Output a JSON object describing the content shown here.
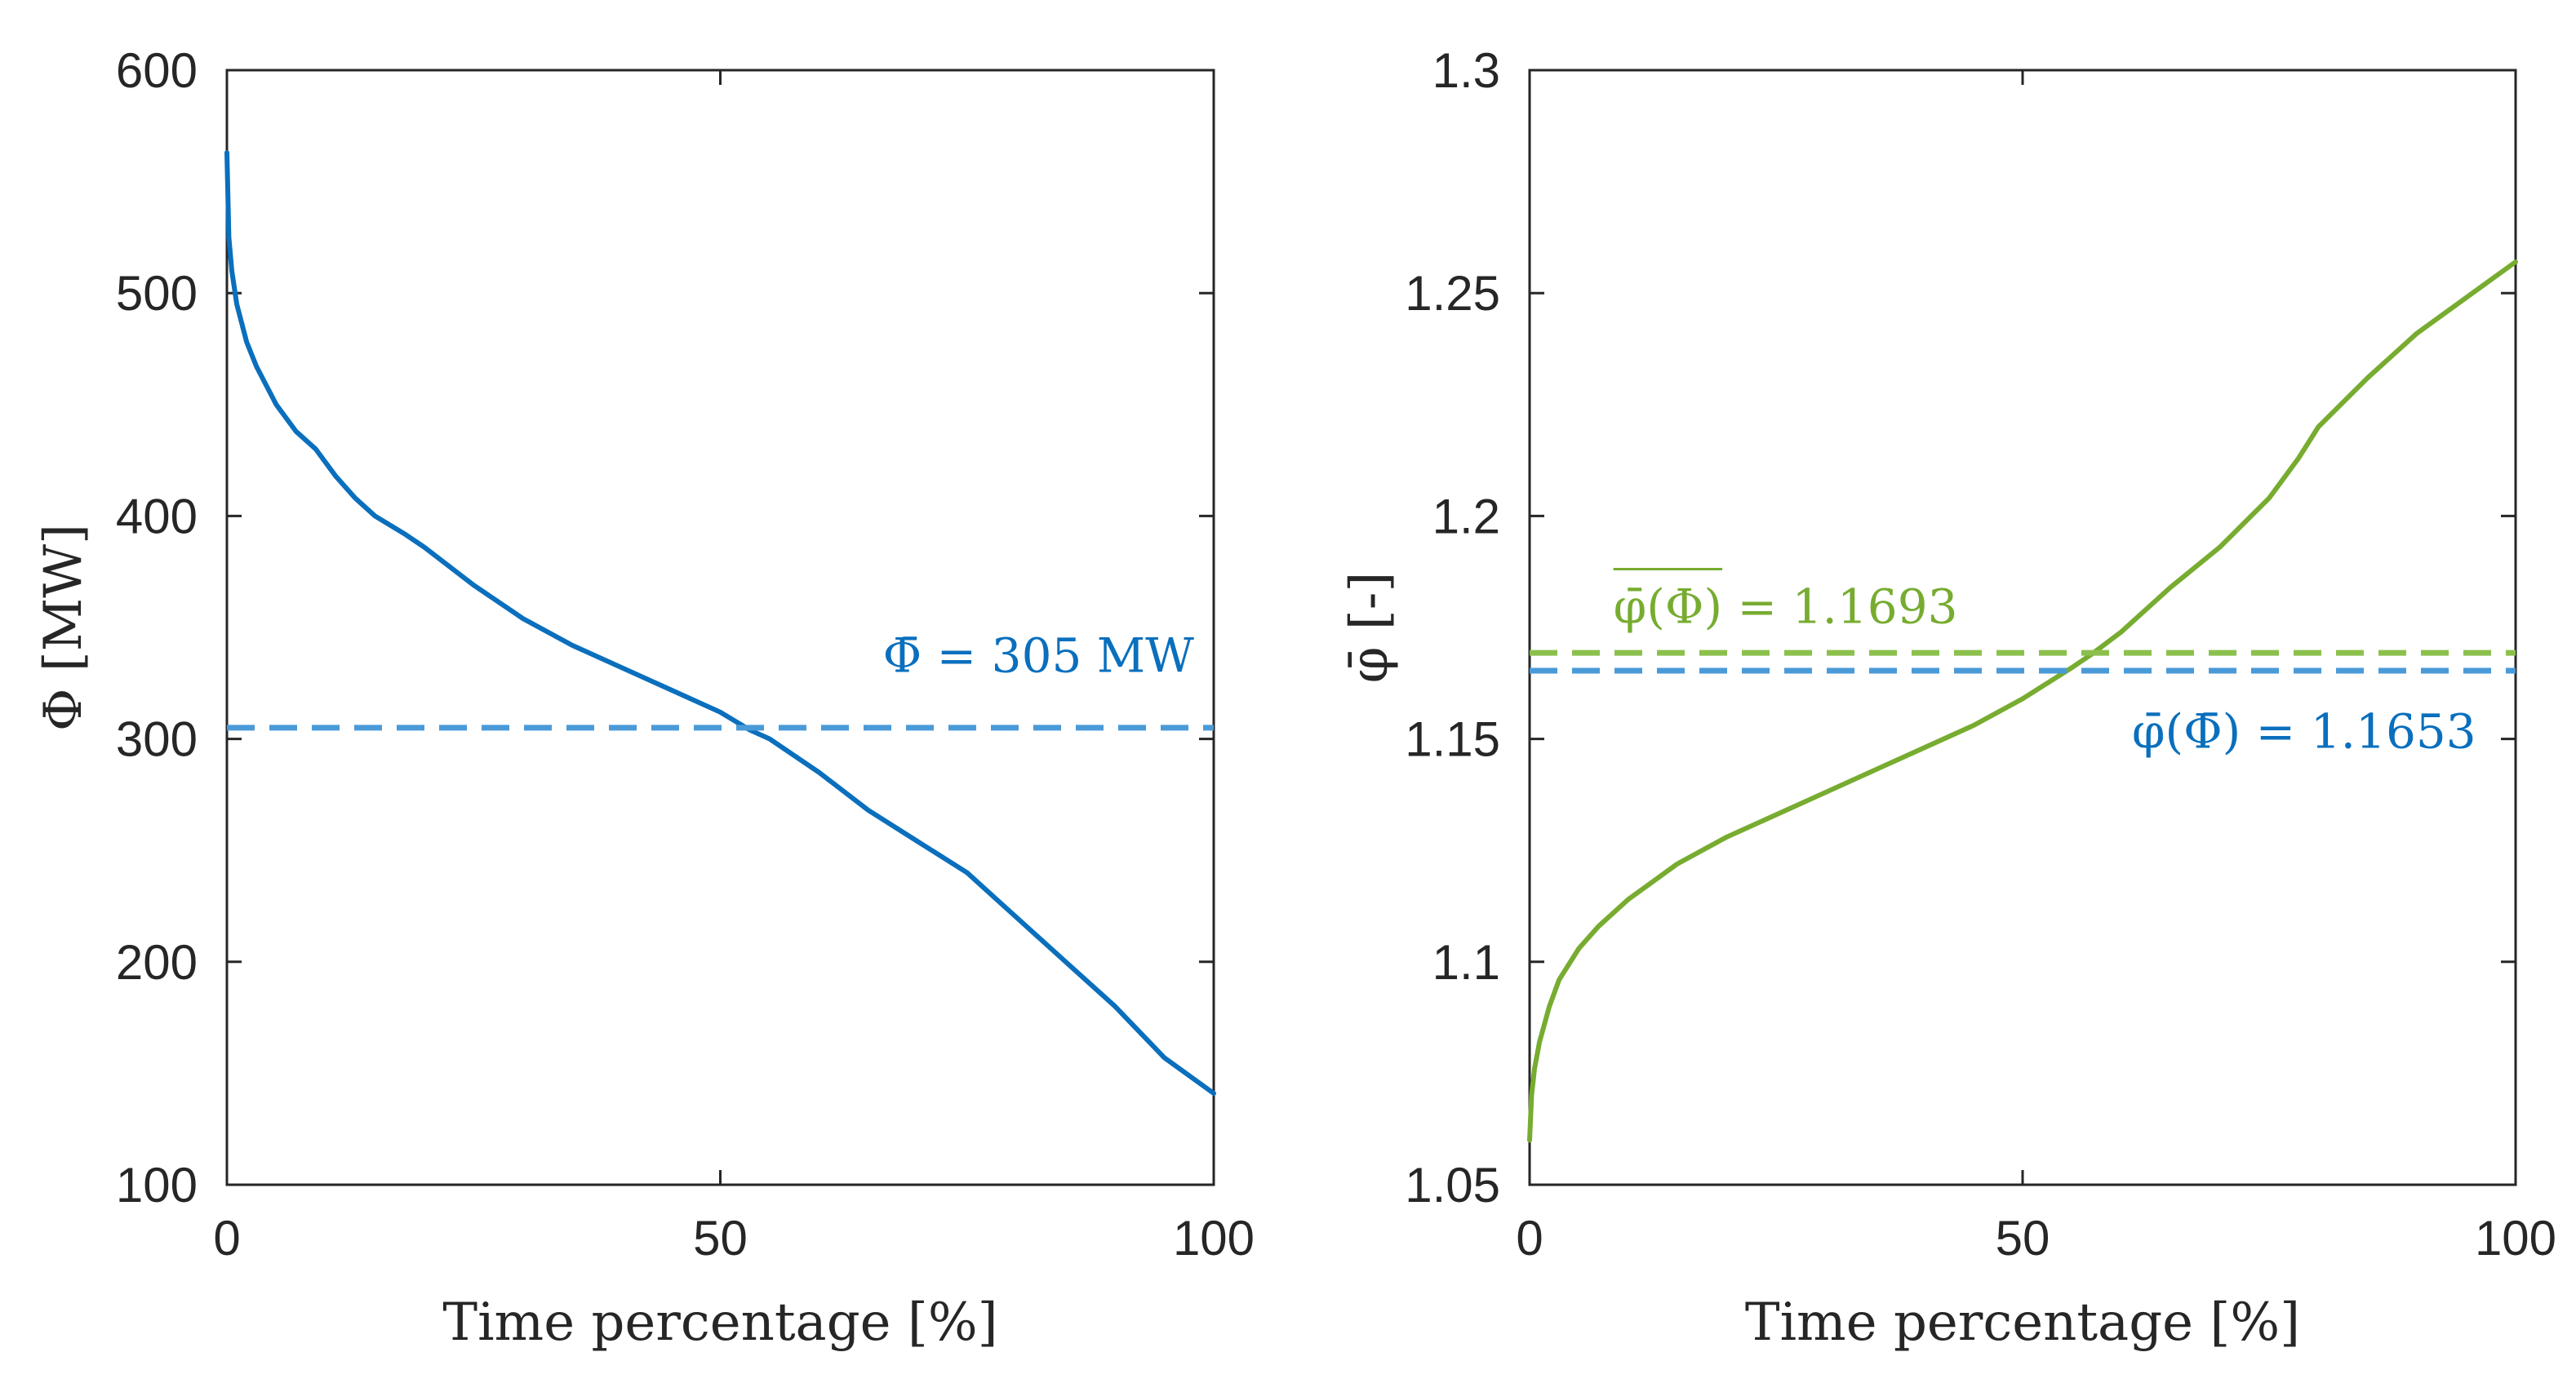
{
  "colors": {
    "blue": "#0a6fbd",
    "blue_dashed": "#4a9ad8",
    "green": "#77ac30",
    "green_dashed": "#8cc04c",
    "axis": "#262626"
  },
  "chart_data": [
    {
      "type": "line",
      "title": "",
      "xlabel": "Time percentage [%]",
      "ylabel": "Φ [MW]",
      "xlim": [
        0,
        100
      ],
      "ylim": [
        100,
        600
      ],
      "xticks": [
        "0",
        "50",
        "100"
      ],
      "yticks": [
        "100",
        "200",
        "300",
        "400",
        "500",
        "600"
      ],
      "grid": false,
      "series": [
        {
          "style": "solid",
          "color": "blue",
          "x": [
            0,
            0.2,
            0.5,
            1,
            2,
            3,
            5,
            7,
            9,
            11,
            13,
            15,
            18,
            20,
            25,
            30,
            35,
            40,
            45,
            50,
            53,
            55,
            60,
            65,
            70,
            75,
            78,
            80,
            85,
            90,
            95,
            100
          ],
          "y": [
            563,
            525,
            510,
            495,
            478,
            467,
            450,
            438,
            430,
            418,
            408,
            400,
            392,
            386,
            369,
            354,
            342,
            332,
            322,
            312,
            304,
            300,
            285,
            268,
            254,
            240,
            228,
            220,
            200,
            180,
            157,
            141
          ]
        },
        {
          "style": "dashed",
          "color": "blue_dashed",
          "x": [
            0,
            100
          ],
          "y": [
            305,
            305
          ]
        }
      ],
      "annotations": [
        {
          "text": "Φ̄ = 305 MW",
          "x": 98,
          "y": 330,
          "color": "blue"
        }
      ]
    },
    {
      "type": "line",
      "title": "",
      "xlabel": "Time percentage [%]",
      "ylabel": "φ̄ [-]",
      "xlim": [
        0,
        100
      ],
      "ylim": [
        1.05,
        1.3
      ],
      "xticks": [
        "0",
        "50",
        "100"
      ],
      "yticks": [
        "1.05",
        "1.1",
        "1.15",
        "1.2",
        "1.25",
        "1.3"
      ],
      "grid": false,
      "series": [
        {
          "style": "solid",
          "color": "green",
          "x": [
            0,
            0.2,
            0.5,
            1,
            2,
            3,
            5,
            7,
            10,
            15,
            20,
            25,
            30,
            35,
            40,
            45,
            50,
            55,
            57,
            60,
            65,
            70,
            75,
            78,
            80,
            85,
            90,
            95,
            100
          ],
          "y": [
            1.06,
            1.07,
            1.076,
            1.082,
            1.09,
            1.096,
            1.103,
            1.108,
            1.114,
            1.122,
            1.128,
            1.133,
            1.138,
            1.143,
            1.148,
            1.153,
            1.159,
            1.166,
            1.169,
            1.174,
            1.184,
            1.193,
            1.204,
            1.213,
            1.22,
            1.231,
            1.241,
            1.249,
            1.257
          ]
        },
        {
          "style": "dashed",
          "color": "green_dashed",
          "x": [
            0,
            100
          ],
          "y": [
            1.1693,
            1.1693
          ]
        },
        {
          "style": "dashed",
          "color": "blue_dashed",
          "x": [
            0,
            100
          ],
          "y": [
            1.1653,
            1.1653
          ]
        }
      ],
      "annotations": [
        {
          "text": "φ̄(Φ) = 1.1693",
          "overline": "φ̄(Φ)",
          "x": 8.5,
          "y": 1.176,
          "color": "green"
        },
        {
          "text": "φ̄(Φ̄) = 1.1653",
          "x": 96,
          "y": 1.148,
          "color": "blue"
        }
      ]
    }
  ]
}
